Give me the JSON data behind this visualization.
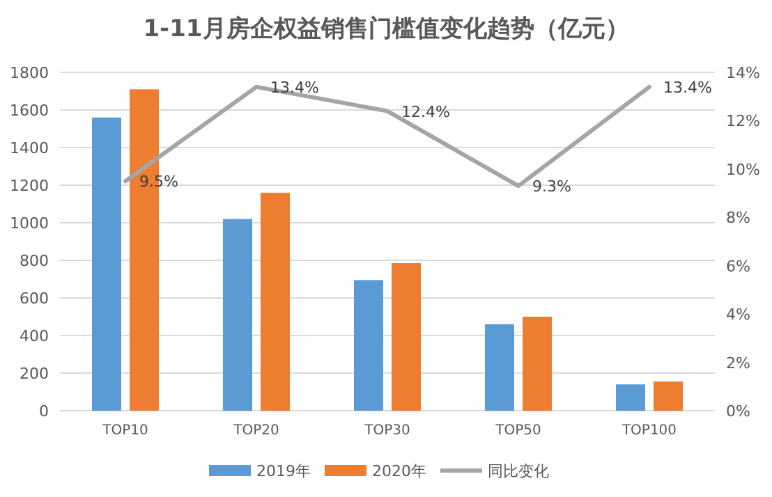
{
  "chart_data": {
    "type": "bar",
    "title": "1-11月房企权益销售门槛值变化趋势（亿元）",
    "categories": [
      "TOP10",
      "TOP20",
      "TOP30",
      "TOP50",
      "TOP100"
    ],
    "series": [
      {
        "name": "2019年",
        "color": "#5b9bd5",
        "values": [
          1560,
          1020,
          695,
          460,
          140
        ]
      },
      {
        "name": "2020年",
        "color": "#ed7d31",
        "values": [
          1710,
          1160,
          785,
          500,
          155
        ]
      },
      {
        "name": "同比变化",
        "type": "line",
        "axis": "y2",
        "color": "#a5a5a5",
        "values": [
          9.5,
          13.4,
          12.4,
          9.3,
          13.4
        ],
        "value_labels": [
          "9.5%",
          "13.4%",
          "12.4%",
          "9.3%",
          "13.4%"
        ]
      }
    ],
    "ylim": [
      0,
      1800
    ],
    "yticks": [
      0,
      200,
      400,
      600,
      800,
      1000,
      1200,
      1400,
      1600,
      1800
    ],
    "y2lim": [
      0,
      14
    ],
    "y2ticks": [
      {
        "value": 0,
        "label": "0%"
      },
      {
        "value": 2,
        "label": "2%"
      },
      {
        "value": 4,
        "label": "4%"
      },
      {
        "value": 6,
        "label": "6%"
      },
      {
        "value": 8,
        "label": "8%"
      },
      {
        "value": 10,
        "label": "10%"
      },
      {
        "value": 12,
        "label": "12%"
      },
      {
        "value": 14,
        "label": "14%"
      }
    ],
    "grid": "y",
    "legend": "bottom",
    "line_style": "solid",
    "marker": "none"
  }
}
